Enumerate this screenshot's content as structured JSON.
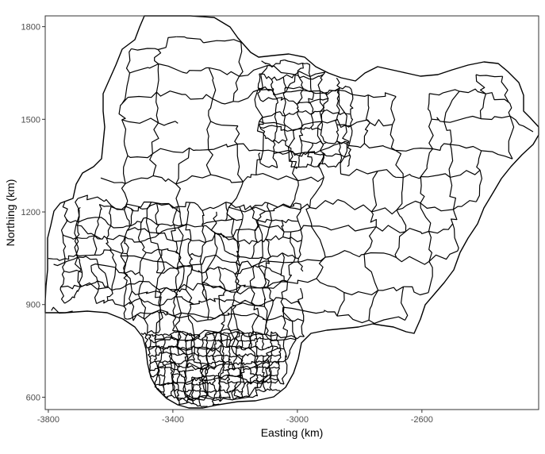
{
  "chart_data": {
    "type": "map",
    "title": "",
    "xlabel": "Easting (km)",
    "ylabel": "Northing (km)",
    "xlim": [
      -3810,
      -2225
    ],
    "ylim": [
      560,
      1835
    ],
    "xticks": [
      -3800,
      -3400,
      -3000,
      -2600
    ],
    "yticks": [
      600,
      900,
      1200,
      1500,
      1800
    ],
    "xtick_labels": [
      "-3800",
      "-3400",
      "-3000",
      "-2600"
    ],
    "ytick_labels": [
      "600",
      "900",
      "1200",
      "1500",
      "1800"
    ],
    "grid": false,
    "panel_border": true,
    "features": "administrative boundary polygons (outline only, no fill)",
    "colors": {
      "stroke": "#000000",
      "background": "#ffffff",
      "panel_border": "#333333"
    }
  }
}
